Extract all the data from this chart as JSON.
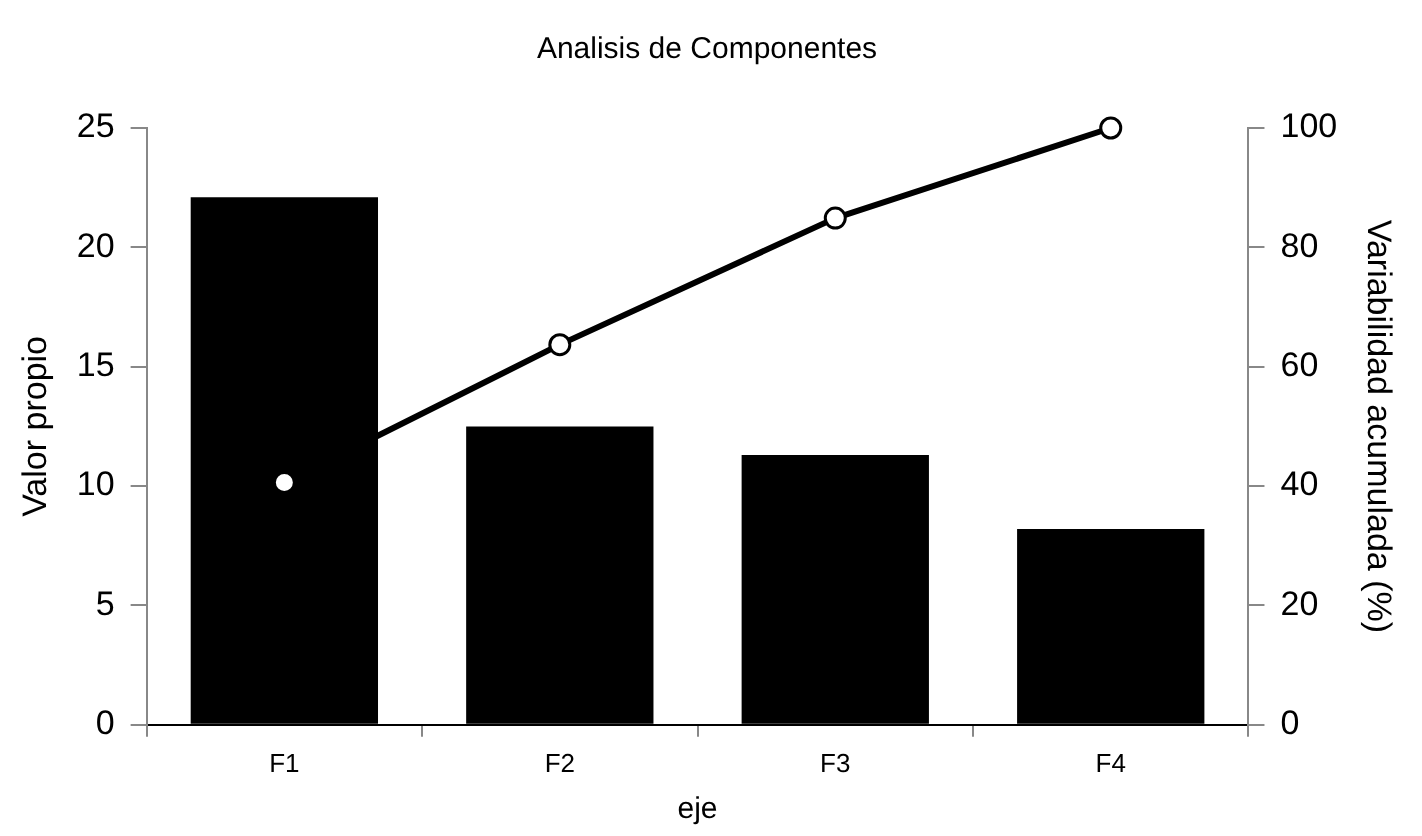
{
  "chart_data": {
    "type": "bar",
    "title": "Analisis de Componentes",
    "xlabel": "eje",
    "ylabel": "Valor propio",
    "y2label": "Variabilidad acumulada (%)",
    "categories": [
      "F1",
      "F2",
      "F3",
      "F4"
    ],
    "series": [
      {
        "color": "#000000",
        "values": [
          22.1,
          12.5,
          11.3,
          8.2
        ]
      },
      {
        "type": "line",
        "axis": "y2",
        "color": "#000000",
        "values": [
          40.6,
          63.7,
          84.9,
          100
        ]
      }
    ],
    "ylim": [
      0,
      25
    ],
    "yticks": [
      0,
      5,
      10,
      15,
      20,
      25
    ],
    "y2lim": [
      0,
      100
    ],
    "y2ticks": [
      0,
      20,
      40,
      60,
      80,
      100
    ],
    "grid": false,
    "legend": false,
    "marker": "circle",
    "line_style": "solid"
  }
}
